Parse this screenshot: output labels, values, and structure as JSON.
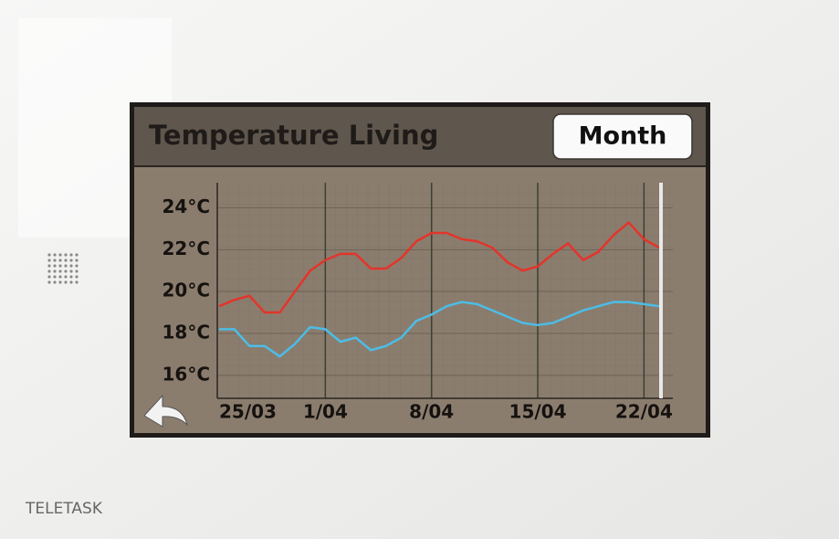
{
  "header": {
    "title": "Temperature Living",
    "button": "Month"
  },
  "brand": "TELETASK",
  "chart_data": {
    "type": "line",
    "categories": [
      "25/03",
      null,
      null,
      null,
      null,
      null,
      null,
      "1/04",
      null,
      null,
      null,
      null,
      null,
      null,
      "8/04",
      null,
      null,
      null,
      null,
      null,
      null,
      "15/04",
      null,
      null,
      null,
      null,
      null,
      null,
      "22/04",
      null
    ],
    "series": [
      {
        "color": "#e4342a",
        "values": [
          19.3,
          19.6,
          19.8,
          19.0,
          19.0,
          20.0,
          21.0,
          21.5,
          21.8,
          21.8,
          21.1,
          21.1,
          21.6,
          22.4,
          22.8,
          22.8,
          22.5,
          22.4,
          22.1,
          21.4,
          21.0,
          21.2,
          21.8,
          22.3,
          21.5,
          21.9,
          22.7,
          23.3,
          22.5,
          22.1
        ]
      },
      {
        "color": "#4cbde6",
        "values": [
          18.2,
          18.2,
          17.4,
          17.4,
          16.9,
          17.5,
          18.3,
          18.2,
          17.6,
          17.8,
          17.2,
          17.4,
          17.8,
          18.6,
          18.9,
          19.3,
          19.5,
          19.4,
          19.1,
          18.8,
          18.5,
          18.4,
          18.5,
          18.8,
          19.1,
          19.3,
          19.5,
          19.5,
          19.4,
          19.3
        ]
      }
    ],
    "ylim": [
      14.9,
      25.2
    ],
    "yticks": [
      {
        "value": 16,
        "label": "16°C"
      },
      {
        "value": 18,
        "label": "18°C"
      },
      {
        "value": 20,
        "label": "20°C"
      },
      {
        "value": 22,
        "label": "22°C"
      },
      {
        "value": 24,
        "label": "24°C"
      }
    ],
    "grid": true
  }
}
